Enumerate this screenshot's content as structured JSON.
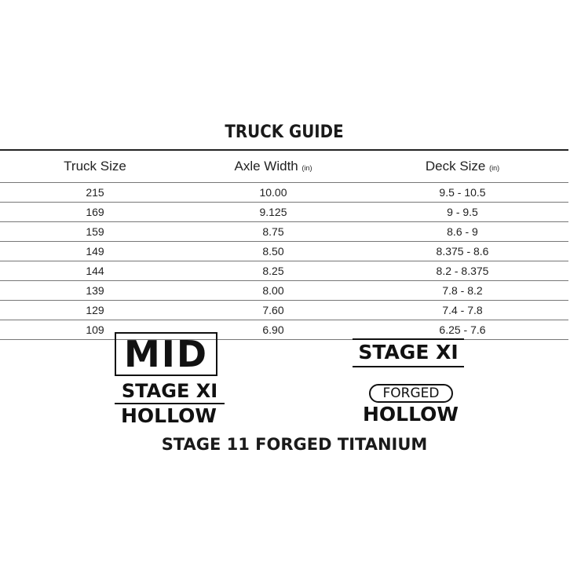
{
  "title": "TRUCK GUIDE",
  "columns": [
    {
      "label": "Truck Size",
      "unit": ""
    },
    {
      "label": "Axle Width",
      "unit": "(in)"
    },
    {
      "label": "Deck Size",
      "unit": "(in)"
    }
  ],
  "rows": [
    [
      "215",
      "10.00",
      "9.5 - 10.5"
    ],
    [
      "169",
      "9.125",
      "9 - 9.5"
    ],
    [
      "159",
      "8.75",
      "8.6 - 9"
    ],
    [
      "149",
      "8.50",
      "8.375 - 8.6"
    ],
    [
      "144",
      "8.25",
      "8.2 - 8.375"
    ],
    [
      "139",
      "8.00",
      "7.8 - 8.2"
    ],
    [
      "129",
      "7.60",
      "7.4 - 7.8"
    ],
    [
      "109",
      "6.90",
      "6.25 - 7.6"
    ]
  ],
  "logos": {
    "mid": "MID",
    "left_stage": "STAGE XI",
    "left_hollow": "HOLLOW",
    "right_stage": "STAGE XI",
    "forged": "FORGED",
    "right_hollow": "HOLLOW"
  },
  "footer": "STAGE 11 FORGED TITANIUM"
}
